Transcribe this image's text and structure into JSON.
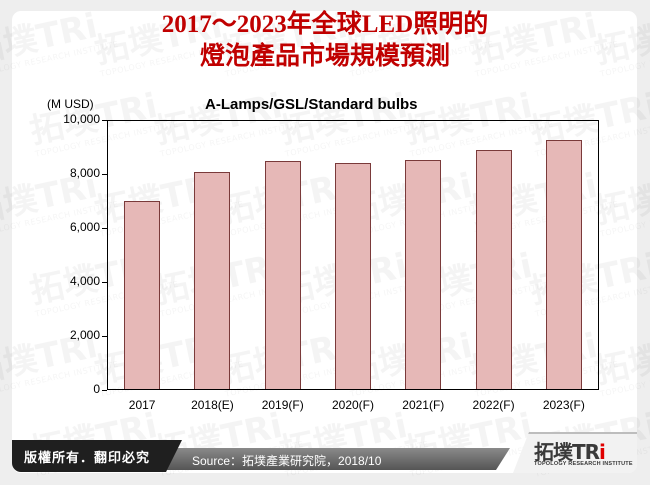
{
  "header": {
    "title_line1": "2017～2023年全球LED照明的",
    "title_line2": "燈泡產品市場規模預測"
  },
  "chart_data": {
    "type": "bar",
    "title": "A-Lamps/GSL/Standard bulbs",
    "xlabel": "",
    "ylabel": "(M USD)",
    "ylim": [
      0,
      10000
    ],
    "yticks": [
      0,
      2000,
      4000,
      6000,
      8000,
      10000
    ],
    "ytick_labels": [
      "0",
      "2,000",
      "4,000",
      "6,000",
      "8,000",
      "10,000"
    ],
    "categories": [
      "2017",
      "2018(E)",
      "2019(F)",
      "2020(F)",
      "2021(F)",
      "2022(F)",
      "2023(F)"
    ],
    "values": [
      6970,
      8020,
      8450,
      8380,
      8490,
      8850,
      9220
    ],
    "grid": false,
    "legend": null,
    "bar_color": "#e6b8b7",
    "bar_edge_color": "#7a3a3a"
  },
  "footer": {
    "copyright": "版權所有．翻印必究",
    "source": "Source：拓墣產業研究院，2018/10",
    "logo_cn": "拓墣",
    "logo_en_prefix": "TR",
    "logo_en_suffix": "i",
    "logo_sub": "TOPOLOGY RESEARCH INSTITUTE"
  },
  "watermark": {
    "text": "拓墣TRi",
    "sub": "TOPOLOGY RESEARCH INSTITUTE"
  },
  "colors": {
    "title": "#c00000",
    "bar_fill": "#e6b8b7",
    "bar_border": "#7a3a3a",
    "footer_dark": "#1f1f1f",
    "footer_gray": "#6e6e6e",
    "logo_accent": "#e00000"
  }
}
